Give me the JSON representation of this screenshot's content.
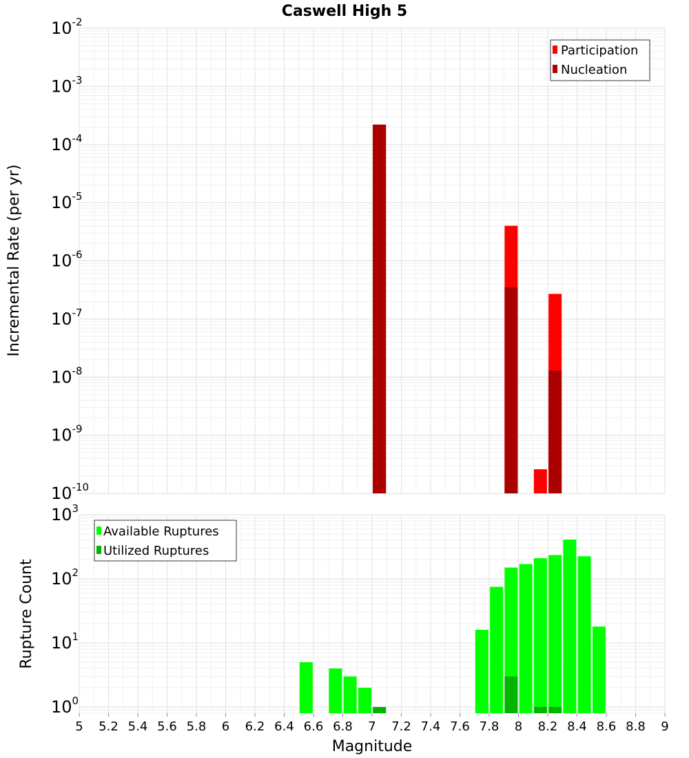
{
  "chart_data": [
    {
      "type": "bar",
      "title": "Caswell High 5",
      "ylabel": "Incremental Rate (per yr)",
      "xlabel": "",
      "yscale": "log",
      "ylim": [
        1e-10,
        0.01
      ],
      "xlim": [
        5,
        9
      ],
      "y_tick_exponents": [
        -2,
        -3,
        -4,
        -5,
        -6,
        -7,
        -8,
        -9,
        -10
      ],
      "legend": {
        "position": "top-right",
        "entries": [
          {
            "label": "Participation",
            "color": "#ff0000"
          },
          {
            "label": "Nucleation",
            "color": "#aa0000"
          }
        ]
      },
      "series": [
        {
          "name": "Participation",
          "color": "#ff0000",
          "x": [
            7.05,
            7.95,
            8.15,
            8.25
          ],
          "values": [
            0.00022,
            4e-06,
            2.6e-10,
            2.7e-07
          ]
        },
        {
          "name": "Nucleation",
          "color": "#aa0000",
          "x": [
            7.05,
            7.95,
            8.25
          ],
          "values": [
            0.00022,
            3.5e-07,
            1.3e-08
          ]
        }
      ]
    },
    {
      "type": "bar",
      "title": "",
      "ylabel": "Rupture Count",
      "xlabel": "Magnitude",
      "yscale": "log",
      "ylim": [
        0.8,
        1000
      ],
      "xlim": [
        5,
        9
      ],
      "y_tick_exponents": [
        3,
        2,
        1,
        0
      ],
      "x_ticks": [
        "5",
        "5.2",
        "5.4",
        "5.6",
        "5.8",
        "6",
        "6.2",
        "6.4",
        "6.6",
        "6.8",
        "7",
        "7.2",
        "7.4",
        "7.6",
        "7.8",
        "8",
        "8.2",
        "8.4",
        "8.6",
        "8.8",
        "9"
      ],
      "legend": {
        "position": "top-left",
        "entries": [
          {
            "label": "Available Ruptures",
            "color": "#00ff00"
          },
          {
            "label": "Utilized Ruptures",
            "color": "#00b400"
          }
        ]
      },
      "series": [
        {
          "name": "Available Ruptures",
          "color": "#00ff00",
          "x": [
            6.55,
            6.75,
            6.85,
            6.95,
            7.05,
            7.75,
            7.85,
            7.95,
            8.05,
            8.15,
            8.25,
            8.35,
            8.45,
            8.55
          ],
          "values": [
            5,
            4,
            3,
            2,
            1,
            16,
            75,
            150,
            170,
            210,
            235,
            410,
            225,
            18
          ]
        },
        {
          "name": "Utilized Ruptures",
          "color": "#00b400",
          "x": [
            7.05,
            7.95,
            8.15,
            8.25
          ],
          "values": [
            1,
            3,
            1,
            1
          ]
        }
      ]
    }
  ],
  "tick_base": "10"
}
